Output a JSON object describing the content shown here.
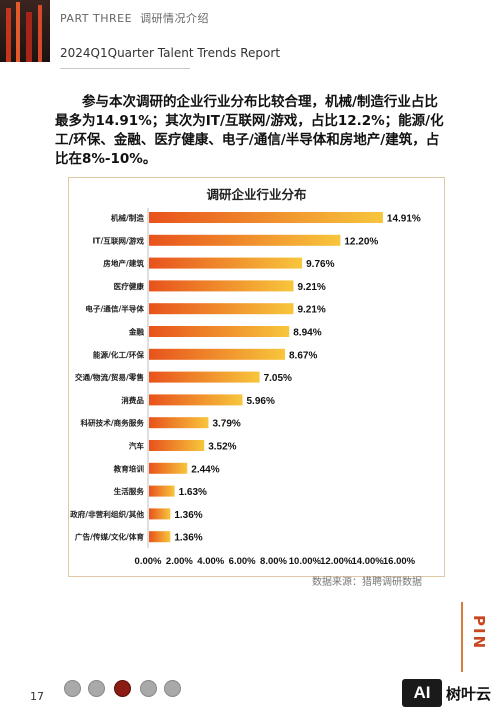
{
  "header": {
    "part": "PART THREE",
    "part_title": "调研情况介绍",
    "subtitle": "2024Q1Quarter Talent Trends Report"
  },
  "intro_text": "参与本次调研的企业行业分布比较合理，机械/制造行业占比最多为14.91%；其次为IT/互联网/游戏，占比12.2%；能源/化工/环保、金融、医疗健康、电子/通信/半导体和房地产/建筑，占比在8%-10%。",
  "chart_data": {
    "type": "bar",
    "orientation": "horizontal",
    "title": "调研企业行业分布",
    "categories": [
      "机械/制造",
      "IT/互联网/游戏",
      "房地产/建筑",
      "医疗健康",
      "电子/通信/半导体",
      "金融",
      "能源/化工/环保",
      "交通/物流/贸易/零售",
      "消费品",
      "科研技术/商务服务",
      "汽车",
      "教育培训",
      "生活服务",
      "政府/非营利组织/其他",
      "广告/传媒/文化/体育"
    ],
    "values": [
      14.91,
      12.2,
      9.76,
      9.21,
      9.21,
      8.94,
      8.67,
      7.05,
      5.96,
      3.79,
      3.52,
      2.44,
      1.63,
      1.36,
      1.36
    ],
    "value_labels": [
      "14.91%",
      "12.20%",
      "9.76%",
      "9.21%",
      "9.21%",
      "8.94%",
      "8.67%",
      "7.05%",
      "5.96%",
      "3.79%",
      "3.52%",
      "2.44%",
      "1.63%",
      "1.36%",
      "1.36%"
    ],
    "xlim": [
      0,
      16
    ],
    "xticks": [
      "0.00%",
      "2.00%",
      "4.00%",
      "6.00%",
      "8.00%",
      "10.00%",
      "12.00%",
      "14.00%",
      "16.00%"
    ],
    "bar_gradient": [
      "#e8521c",
      "#f7c63c"
    ],
    "grid": false
  },
  "source": "数据来源：猎聘调研数据",
  "page_number": "17",
  "brand_vertical": "PIN",
  "watermark": {
    "logo": "AI",
    "text": "树叶云"
  },
  "colors": {
    "accent": "#c8451d",
    "frame": "#e2c7a7"
  }
}
